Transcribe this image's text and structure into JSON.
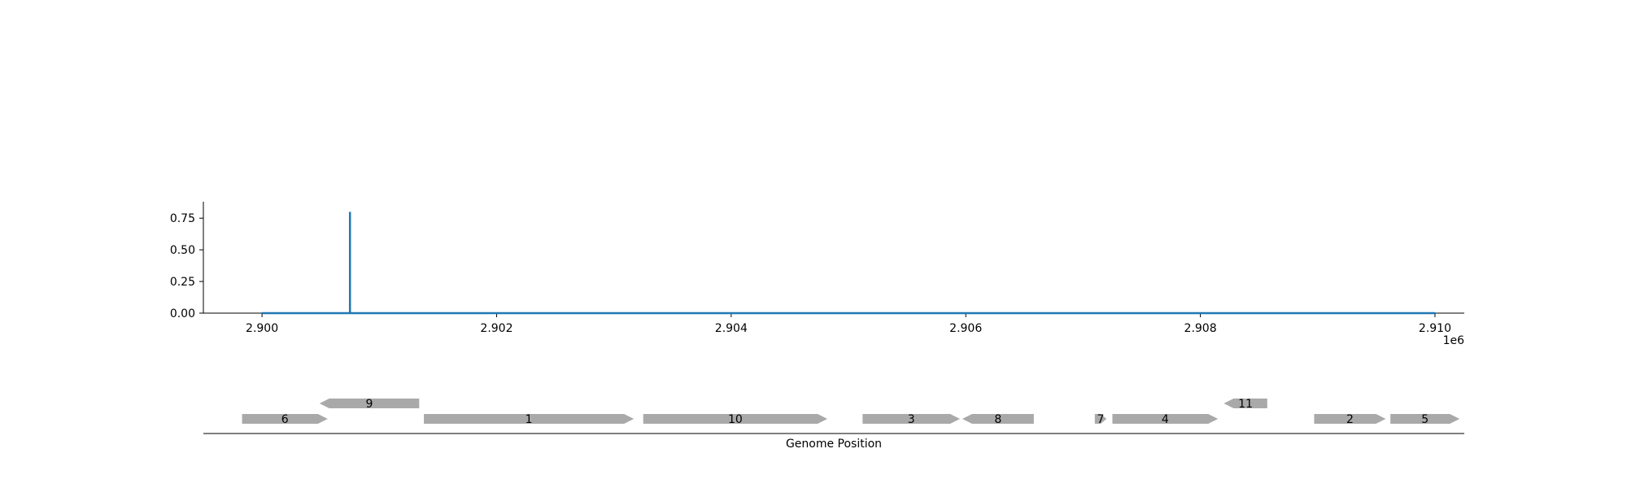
{
  "chart_data": [
    {
      "type": "line",
      "xlim": [
        2899500,
        2910250
      ],
      "ylim": [
        0,
        0.88
      ],
      "x_ticks": [
        2900000,
        2902000,
        2904000,
        2906000,
        2908000,
        2910000
      ],
      "x_tick_labels": [
        "2.900",
        "2.902",
        "2.904",
        "2.906",
        "2.908",
        "2.910"
      ],
      "x_offset_label": "1e6",
      "y_ticks": [
        0,
        0.25,
        0.5,
        0.75
      ],
      "y_tick_labels": [
        "0.00",
        "0.25",
        "0.50",
        "0.75"
      ],
      "line_color": "#1f77b4",
      "series": [
        {
          "x": [
            2900000,
            2900750,
            2900750,
            2900750,
            2910000
          ],
          "y": [
            0,
            0,
            0.8,
            0,
            0
          ]
        }
      ]
    },
    {
      "type": "gene-track",
      "xlabel": "Genome Position",
      "gene_color": "#a9a9a9",
      "genes": [
        {
          "label": "6",
          "start": 2899830,
          "end": 2900560,
          "strand": 1,
          "level": 0
        },
        {
          "label": "9",
          "start": 2900490,
          "end": 2901340,
          "strand": -1,
          "level": 1
        },
        {
          "label": "1",
          "start": 2901380,
          "end": 2903170,
          "strand": 1,
          "level": 0
        },
        {
          "label": "10",
          "start": 2903250,
          "end": 2904820,
          "strand": 1,
          "level": 0
        },
        {
          "label": "3",
          "start": 2905120,
          "end": 2905950,
          "strand": 1,
          "level": 0
        },
        {
          "label": "8",
          "start": 2905970,
          "end": 2906580,
          "strand": -1,
          "level": 0
        },
        {
          "label": "7",
          "start": 2907100,
          "end": 2907200,
          "strand": 1,
          "level": 0
        },
        {
          "label": "4",
          "start": 2907250,
          "end": 2908150,
          "strand": 1,
          "level": 0
        },
        {
          "label": "11",
          "start": 2908200,
          "end": 2908570,
          "strand": -1,
          "level": 1
        },
        {
          "label": "2",
          "start": 2908970,
          "end": 2909580,
          "strand": 1,
          "level": 0
        },
        {
          "label": "5",
          "start": 2909620,
          "end": 2910210,
          "strand": 1,
          "level": 0
        }
      ]
    }
  ]
}
